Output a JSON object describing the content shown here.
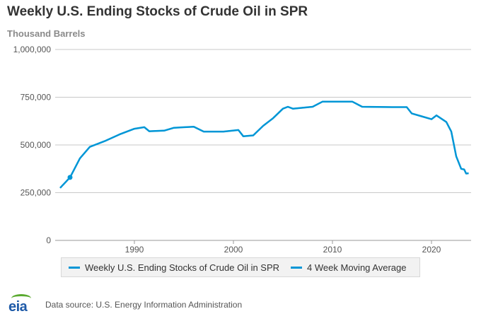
{
  "header": {
    "title": "Weekly U.S. Ending Stocks of Crude Oil in SPR",
    "subtitle": "Thousand Barrels"
  },
  "footer": {
    "logo_text": "eia",
    "source": "Data source: U.S. Energy Information Administration"
  },
  "colors": {
    "series": "#0096d6",
    "grid": "#c8c8c8",
    "axis_text": "#555555",
    "logo_arc": "#5aaa2f",
    "logo_text": "#1e5aa8"
  },
  "chart_data": {
    "type": "line",
    "title": "Weekly U.S. Ending Stocks of Crude Oil in SPR",
    "ylabel": "Thousand Barrels",
    "xlim": [
      1982,
      2024
    ],
    "ylim": [
      0,
      1000000
    ],
    "y_ticks": [
      0,
      250000,
      500000,
      750000,
      1000000
    ],
    "y_tick_labels": [
      "0",
      "250,000",
      "500,000",
      "750,000",
      "1,000,000"
    ],
    "x_ticks": [
      1990,
      2000,
      2010,
      2020
    ],
    "x_tick_labels": [
      "1990",
      "2000",
      "2010",
      "2020"
    ],
    "grid": true,
    "legend": "bottom",
    "series": [
      {
        "name": "Weekly U.S. Ending Stocks of Crude Oil in SPR",
        "x": [
          1982.5,
          1983.5,
          1984.5,
          1985.5,
          1987,
          1988.5,
          1990,
          1991,
          1991.5,
          1993,
          1994,
          1996,
          1997,
          1999,
          2000.5,
          2001,
          2002,
          2003,
          2004,
          2005,
          2005.5,
          2006,
          2008,
          2009,
          2012,
          2013,
          2016,
          2017.5,
          2018,
          2019,
          2020,
          2020.5,
          2021.5,
          2022,
          2022.5,
          2023,
          2023.3,
          2023.5,
          2023.75
        ],
        "y": [
          275000,
          330000,
          430000,
          490000,
          520000,
          555000,
          585000,
          593000,
          572000,
          575000,
          590000,
          595000,
          570000,
          570000,
          578000,
          545000,
          550000,
          600000,
          640000,
          690000,
          700000,
          690000,
          700000,
          727000,
          727000,
          700000,
          698000,
          698000,
          665000,
          650000,
          635000,
          655000,
          620000,
          570000,
          440000,
          375000,
          372000,
          350000,
          352000
        ]
      },
      {
        "name": "4 Week Moving Average",
        "x": [
          1982.5,
          1983.5,
          1984.5,
          1985.5,
          1987,
          1988.5,
          1990,
          1991,
          1991.5,
          1993,
          1994,
          1996,
          1997,
          1999,
          2000.5,
          2001,
          2002,
          2003,
          2004,
          2005,
          2005.5,
          2006,
          2008,
          2009,
          2012,
          2013,
          2016,
          2017.5,
          2018,
          2019,
          2020,
          2020.5,
          2021.5,
          2022,
          2022.5,
          2023,
          2023.3,
          2023.5,
          2023.75
        ],
        "y": [
          275000,
          330000,
          430000,
          490000,
          520000,
          555000,
          585000,
          593000,
          572000,
          575000,
          590000,
          595000,
          570000,
          570000,
          578000,
          545000,
          550000,
          600000,
          640000,
          690000,
          700000,
          690000,
          700000,
          727000,
          727000,
          700000,
          698000,
          698000,
          665000,
          650000,
          635000,
          655000,
          620000,
          570000,
          440000,
          375000,
          372000,
          350000,
          352000
        ]
      }
    ]
  }
}
